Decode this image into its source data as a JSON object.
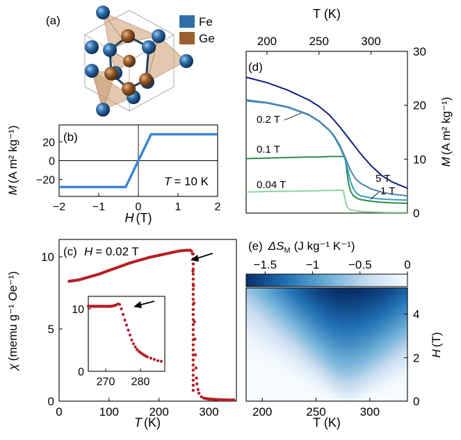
{
  "chart_data": [
    {
      "id": "a",
      "type": "other",
      "panel_label": "(a)",
      "legend": [
        {
          "name": "Fe",
          "color": "#2f6fa8"
        },
        {
          "name": "Ge",
          "color": "#9a5f2c"
        }
      ]
    },
    {
      "id": "b",
      "type": "line",
      "panel_label": "(b)",
      "xlabel_symbol": "H",
      "xlabel_unit": "(T)",
      "ylabel_symbol": "M",
      "ylabel_unit": "(A m² kg⁻¹)",
      "annotation_symbol": "T",
      "annotation_value": "= 10 K",
      "xlim": [
        -2,
        2
      ],
      "ylim": [
        -38,
        38
      ],
      "xticks": [
        -2,
        -1,
        0,
        1,
        2
      ],
      "xtick_labels": [
        "−2",
        "−1",
        "0",
        "1",
        "2"
      ],
      "yticks": [
        -20,
        0,
        20
      ],
      "ytick_labels": [
        "−20",
        "0",
        "20"
      ],
      "series": [
        {
          "color": "#3a86d0",
          "x": [
            -2,
            -0.32,
            0,
            0.32,
            2
          ],
          "y": [
            -28,
            -28,
            0,
            28,
            28
          ]
        }
      ]
    },
    {
      "id": "c",
      "type": "scatter",
      "panel_label": "(c)",
      "annotation_symbol": "H",
      "annotation_value": "= 0.02 T",
      "xlabel_symbol": "T",
      "xlabel_unit": "(K)",
      "ylabel_symbol": "χ",
      "ylabel_unit": "(memu g⁻¹ Oe⁻¹)",
      "xlim": [
        0,
        355
      ],
      "ylim": [
        0,
        11.2
      ],
      "xticks": [
        0,
        100,
        200,
        300
      ],
      "xtick_labels": [
        "0",
        "100",
        "200",
        "300"
      ],
      "yticks": [
        0,
        5,
        10
      ],
      "ytick_labels": [
        "0",
        "5",
        "10"
      ],
      "series": [
        {
          "color": "#b51f24",
          "x": [
            20,
            40,
            60,
            80,
            100,
            120,
            140,
            160,
            180,
            200,
            220,
            240,
            255,
            262,
            265,
            267,
            268,
            269,
            270,
            271,
            272,
            273,
            274,
            275,
            276,
            278,
            280,
            285,
            290,
            300,
            320,
            340,
            350
          ],
          "y": [
            8.3,
            8.4,
            8.6,
            8.8,
            9.05,
            9.3,
            9.55,
            9.75,
            9.95,
            10.1,
            10.25,
            10.4,
            10.45,
            10.45,
            10.4,
            10.2,
            9.0,
            8.0,
            6.8,
            5.5,
            4.3,
            3.2,
            2.3,
            1.6,
            1.2,
            0.8,
            0.55,
            0.3,
            0.2,
            0.15,
            0.1,
            0.08,
            0.08
          ]
        }
      ],
      "inset": {
        "xlim": [
          265,
          287
        ],
        "ylim": [
          0,
          12
        ],
        "xticks": [
          270,
          280
        ],
        "xtick_labels": [
          "270",
          "280"
        ],
        "yticks": [
          0,
          10
        ],
        "ytick_labels": [
          "0",
          "10"
        ],
        "series": [
          {
            "color": "#b51f24",
            "x": [
              265,
              266,
              267,
              268,
              269,
              270,
              271,
              272,
              273,
              273.5,
              274,
              274.5,
              275,
              275.5,
              276,
              276.5,
              277,
              277.5,
              278,
              278.5,
              279,
              279.5,
              280,
              280.5,
              281,
              281.5,
              282,
              283,
              284,
              285,
              286
            ],
            "y": [
              10.4,
              10.4,
              10.4,
              10.4,
              10.4,
              10.4,
              10.4,
              10.45,
              10.6,
              10.8,
              10.7,
              10.0,
              9.1,
              8.2,
              7.4,
              6.6,
              5.8,
              5.0,
              4.4,
              3.9,
              3.5,
              3.2,
              3.0,
              2.8,
              2.6,
              2.45,
              2.3,
              2.1,
              1.9,
              1.7,
              1.6
            ]
          }
        ]
      }
    },
    {
      "id": "d",
      "type": "line",
      "panel_label": "(d)",
      "xlabel": "T (K)",
      "ylabel_symbol": "M",
      "ylabel_unit": "(A m² kg⁻¹)",
      "xlim": [
        180,
        335
      ],
      "ylim": [
        0,
        30
      ],
      "xticks": [
        200,
        250,
        300
      ],
      "xtick_labels": [
        "200",
        "250",
        "300"
      ],
      "yticks": [
        0,
        10,
        20,
        30
      ],
      "ytick_labels": [
        "0",
        "10",
        "20",
        "30"
      ],
      "series": [
        {
          "name": "5 T",
          "color": "#0d1f7e",
          "x": [
            180,
            200,
            220,
            240,
            250,
            260,
            270,
            280,
            290,
            300,
            310,
            320,
            330,
            335
          ],
          "y": [
            25.2,
            24.2,
            22.8,
            21.0,
            19.8,
            18.2,
            16.0,
            13.5,
            11.0,
            8.8,
            7.0,
            5.8,
            5.0,
            4.6
          ]
        },
        {
          "name": "1 T",
          "color": "#4f7fae",
          "x": [
            180,
            200,
            220,
            240,
            250,
            260,
            265,
            270,
            275,
            280,
            285,
            290,
            300,
            310,
            320,
            335
          ],
          "y": [
            21.0,
            20.5,
            19.7,
            18.3,
            17.1,
            15.4,
            14.2,
            12.6,
            10.4,
            8.0,
            6.4,
            5.5,
            4.5,
            3.9,
            3.5,
            3.2
          ]
        },
        {
          "name": "0.2 T",
          "color": "#2da2bd",
          "x": [
            180,
            200,
            220,
            240,
            250,
            260,
            265,
            270,
            275,
            278,
            280,
            283,
            286,
            290,
            300,
            310,
            320,
            335
          ],
          "y": [
            20.8,
            20.4,
            19.6,
            18.2,
            17.0,
            15.3,
            14.0,
            12.3,
            10.0,
            7.8,
            6.0,
            4.5,
            3.7,
            3.2,
            2.8,
            2.6,
            2.5,
            2.4
          ]
        },
        {
          "name": "0.1 T",
          "color": "#2e8848",
          "x": [
            180,
            200,
            220,
            240,
            250,
            260,
            265,
            270,
            273,
            275,
            276,
            277,
            278,
            280,
            283,
            287,
            290,
            300,
            310,
            320,
            335
          ],
          "y": [
            10.1,
            10.2,
            10.3,
            10.4,
            10.4,
            10.5,
            10.5,
            10.5,
            10.5,
            10.3,
            9.0,
            7.5,
            6.0,
            4.2,
            3.2,
            2.7,
            2.5,
            2.2,
            2.0,
            1.9,
            1.8
          ]
        },
        {
          "name": "0.04 T",
          "color": "#8ad49a",
          "x": [
            180,
            200,
            220,
            240,
            250,
            260,
            265,
            270,
            273,
            274,
            275,
            276,
            277,
            278,
            280,
            285,
            290,
            300,
            310,
            320,
            335
          ],
          "y": [
            3.9,
            4.0,
            4.05,
            4.1,
            4.15,
            4.2,
            4.2,
            4.25,
            4.25,
            3.6,
            2.6,
            1.7,
            1.2,
            0.9,
            0.6,
            0.4,
            0.3,
            0.2,
            0.15,
            0.1,
            0.1
          ]
        }
      ]
    },
    {
      "id": "e",
      "type": "heatmap",
      "panel_label": "(e)",
      "colorbar_label_symbol": "ΔS",
      "colorbar_label_subscript": "M",
      "colorbar_label_unit": "(J kg⁻¹ K⁻¹)",
      "colorbar_range": [
        -1.7,
        0
      ],
      "colorbar_ticks": [
        -1.5,
        -1,
        -0.5,
        0
      ],
      "colorbar_tick_labels": [
        "−1.5",
        "−1",
        "−0.5",
        "0"
      ],
      "colormap": [
        "#08306b",
        "#2171b5",
        "#6baed6",
        "#c6dbef",
        "#f7fbff"
      ],
      "xlabel": "T (K)",
      "ylabel_symbol": "H",
      "ylabel_unit": "(T)",
      "xlim": [
        185,
        335
      ],
      "ylim": [
        0,
        5.2
      ],
      "xticks": [
        200,
        250,
        300
      ],
      "xtick_labels": [
        "200",
        "250",
        "300"
      ],
      "yticks": [
        0,
        2,
        4
      ],
      "ytick_labels": [
        "0",
        "2",
        "4"
      ],
      "peak_temperature_K": 278,
      "peak_value": -1.7
    }
  ]
}
